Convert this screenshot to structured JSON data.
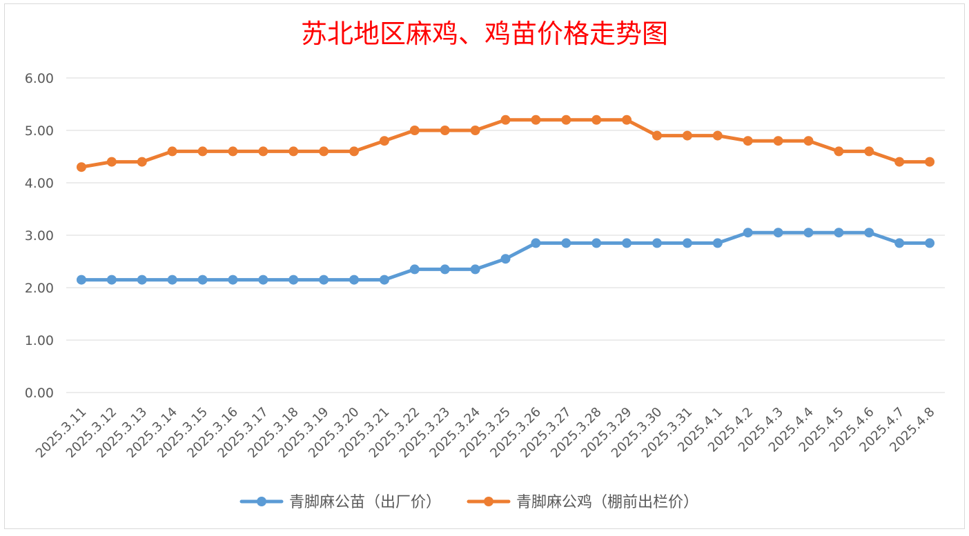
{
  "chart_data": {
    "type": "line",
    "title": "苏北地区麻鸡、鸡苗价格走势图",
    "xlabel": "",
    "ylabel": "",
    "ylim": [
      0,
      6
    ],
    "yticks": [
      "0.00",
      "1.00",
      "2.00",
      "3.00",
      "4.00",
      "5.00",
      "6.00"
    ],
    "grid": true,
    "legend_position": "bottom",
    "categories": [
      "2025.3.11",
      "2025.3.12",
      "2025.3.13",
      "2025.3.14",
      "2025.3.15",
      "2025.3.16",
      "2025.3.17",
      "2025.3.18",
      "2025.3.19",
      "2025.3.20",
      "2025.3.21",
      "2025.3.22",
      "2025.3.23",
      "2025.3.24",
      "2025.3.25",
      "2025.3.26",
      "2025.3.27",
      "2025.3.28",
      "2025.3.29",
      "2025.3.30",
      "2025.3.31",
      "2025.4.1",
      "2025.4.2",
      "2025.4.3",
      "2025.4.4",
      "2025.4.5",
      "2025.4.6",
      "2025.4.7",
      "2025.4.8"
    ],
    "series": [
      {
        "name": "青脚麻公苗（出厂价）",
        "color": "#5b9bd5",
        "values": [
          2.15,
          2.15,
          2.15,
          2.15,
          2.15,
          2.15,
          2.15,
          2.15,
          2.15,
          2.15,
          2.15,
          2.35,
          2.35,
          2.35,
          2.55,
          2.85,
          2.85,
          2.85,
          2.85,
          2.85,
          2.85,
          2.85,
          3.05,
          3.05,
          3.05,
          3.05,
          3.05,
          2.85,
          2.85
        ]
      },
      {
        "name": "青脚麻公鸡（棚前出栏价）",
        "color": "#ed7d31",
        "values": [
          4.3,
          4.4,
          4.4,
          4.6,
          4.6,
          4.6,
          4.6,
          4.6,
          4.6,
          4.6,
          4.8,
          5.0,
          5.0,
          5.0,
          5.2,
          5.2,
          5.2,
          5.2,
          5.2,
          4.9,
          4.9,
          4.9,
          4.8,
          4.8,
          4.8,
          4.6,
          4.6,
          4.4,
          4.4
        ]
      }
    ],
    "title_color": "#ff0000"
  }
}
